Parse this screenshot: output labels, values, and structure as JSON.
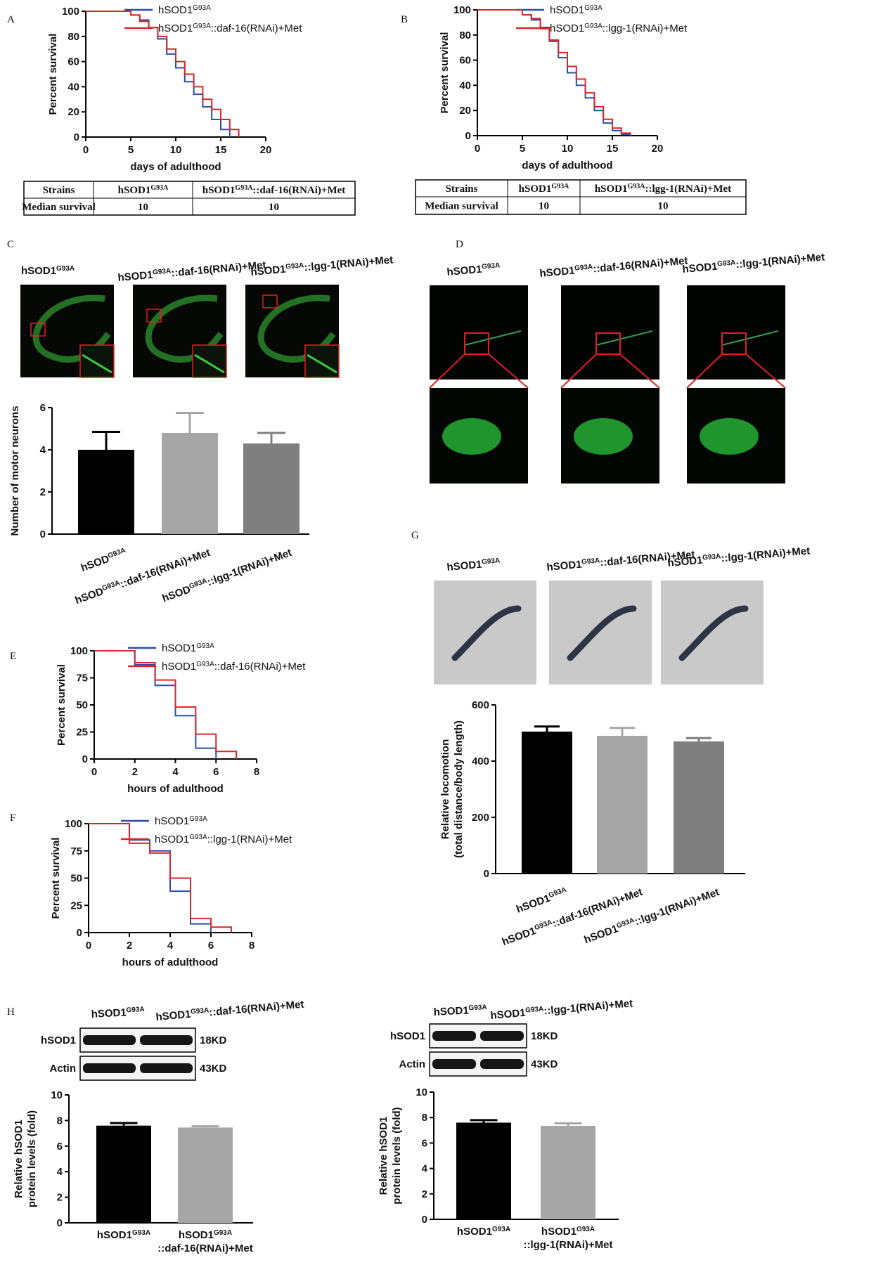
{
  "panel_letters": [
    "A",
    "B",
    "C",
    "D",
    "E",
    "F",
    "G",
    "H"
  ],
  "chart_data": [
    {
      "type": "line",
      "step": true,
      "xlabel": "days of adulthood",
      "ylabel": "Percent survival",
      "x": [
        0,
        4,
        5,
        6,
        7,
        8,
        9,
        10,
        11,
        12,
        13,
        14,
        15,
        16,
        17
      ],
      "xlim": [
        0,
        20
      ],
      "xticks": [
        0,
        5,
        10,
        15,
        20
      ],
      "ylim": [
        0,
        100
      ],
      "yticks": [
        0,
        20,
        40,
        60,
        80,
        100
      ],
      "series": [
        {
          "name": [
            "hSOD1",
            "G93A"
          ],
          "color": "#2a4fa8",
          "values": [
            100,
            100,
            97,
            93,
            87,
            78,
            66,
            55,
            44,
            34,
            24,
            14,
            6,
            0,
            null
          ]
        },
        {
          "name": [
            "hSOD1",
            "G93A",
            "::daf-16(RNAi)+Met"
          ],
          "color": "#d8262b",
          "values": [
            100,
            100,
            97,
            92,
            87,
            80,
            70,
            60,
            50,
            40,
            30,
            22,
            14,
            6,
            0
          ]
        }
      ]
    },
    {
      "type": "line",
      "step": true,
      "xlabel": "days of adulthood",
      "ylabel": "Percent survival",
      "x": [
        0,
        4,
        5,
        6,
        7,
        8,
        9,
        10,
        11,
        12,
        13,
        14,
        15,
        16,
        17
      ],
      "xlim": [
        0,
        20
      ],
      "xticks": [
        0,
        5,
        10,
        15,
        20
      ],
      "ylim": [
        0,
        100
      ],
      "yticks": [
        0,
        20,
        40,
        60,
        80,
        100
      ],
      "series": [
        {
          "name": [
            "hSOD1",
            "G93A"
          ],
          "color": "#2a4fa8",
          "values": [
            100,
            100,
            96,
            92,
            86,
            75,
            62,
            50,
            40,
            30,
            20,
            10,
            4,
            1,
            0
          ]
        },
        {
          "name": [
            "hSOD1",
            "G93A",
            "::lgg-1(RNAi)+Met"
          ],
          "color": "#d8262b",
          "values": [
            100,
            100,
            96,
            93,
            85,
            76,
            66,
            55,
            45,
            34,
            23,
            13,
            6,
            2,
            0
          ]
        }
      ]
    },
    {
      "type": "bar",
      "ylabel": "Number of motor neurons",
      "categories": [
        [
          "hSOD",
          "G93A"
        ],
        [
          "hSOD",
          "G93A",
          "::daf-16(RNAi)+Met"
        ],
        [
          "hSOD",
          "G93A",
          "::lgg-1(RNAi)+Met"
        ]
      ],
      "values": [
        4.0,
        4.8,
        4.3
      ],
      "errors": [
        0.85,
        0.95,
        0.5
      ],
      "colors": [
        "#000000",
        "#a6a6a6",
        "#7f7f7f"
      ],
      "ylim": [
        0,
        6
      ],
      "yticks": [
        0,
        2,
        4,
        6
      ]
    },
    {
      "type": "line",
      "step": true,
      "xlabel": "hours of adulthood",
      "ylabel": "Percent survival",
      "x": [
        0,
        2,
        3,
        4,
        5,
        6,
        7
      ],
      "xlim": [
        0,
        8
      ],
      "xticks": [
        0,
        2,
        4,
        6,
        8
      ],
      "ylim": [
        0,
        100
      ],
      "yticks": [
        0,
        25,
        50,
        75,
        100
      ],
      "series": [
        {
          "name": [
            "hSOD1",
            "G93A"
          ],
          "color": "#2a4fa8",
          "values": [
            100,
            87,
            68,
            40,
            10,
            0,
            null
          ]
        },
        {
          "name": [
            "hSOD1",
            "G93A",
            "::daf-16(RNAi)+Met"
          ],
          "color": "#d8262b",
          "values": [
            100,
            89,
            73,
            48,
            23,
            7,
            0
          ]
        }
      ]
    },
    {
      "type": "line",
      "step": true,
      "xlabel": "hours of adulthood",
      "ylabel": "Percent survival",
      "x": [
        0,
        2,
        3,
        4,
        5,
        6,
        7
      ],
      "xlim": [
        0,
        8
      ],
      "xticks": [
        0,
        2,
        4,
        6,
        8
      ],
      "ylim": [
        0,
        100
      ],
      "yticks": [
        0,
        25,
        50,
        75,
        100
      ],
      "series": [
        {
          "name": [
            "hSOD1",
            "G93A"
          ],
          "color": "#2a4fa8",
          "values": [
            100,
            85,
            75,
            38,
            8,
            0,
            null
          ]
        },
        {
          "name": [
            "hSOD1",
            "G93A",
            "::lgg-1(RNAi)+Met"
          ],
          "color": "#d8262b",
          "values": [
            100,
            82,
            73,
            50,
            13,
            5,
            0
          ]
        }
      ]
    },
    {
      "type": "bar",
      "ylabel": [
        "Relative locomotion",
        "(total distance/body length)"
      ],
      "categories": [
        [
          "hSOD1",
          "G93A"
        ],
        [
          "hSOD1",
          "G93A",
          "::daf-16(RNAi)+Met"
        ],
        [
          "hSOD1",
          "G93A",
          "::lgg-1(RNAi)+Met"
        ]
      ],
      "values": [
        505,
        490,
        470
      ],
      "errors": [
        18,
        28,
        12
      ],
      "colors": [
        "#000000",
        "#a6a6a6",
        "#7f7f7f"
      ],
      "ylim": [
        0,
        600
      ],
      "yticks": [
        0,
        200,
        400,
        600
      ]
    },
    {
      "type": "bar",
      "ylabel": [
        "Relative hSOD1",
        "protein levels (fold)"
      ],
      "categories": [
        [
          "hSOD1",
          "G93A"
        ],
        [
          "hSOD1",
          "G93A",
          "::daf-16(RNAi)+Met"
        ]
      ],
      "values": [
        7.6,
        7.45
      ],
      "errors": [
        0.2,
        0.1
      ],
      "colors": [
        "#000000",
        "#a6a6a6"
      ],
      "ylim": [
        0,
        10
      ],
      "yticks": [
        0,
        2,
        4,
        6,
        8,
        10
      ]
    },
    {
      "type": "bar",
      "ylabel": [
        "Relative hSOD1",
        "protein levels (fold)"
      ],
      "categories": [
        [
          "hSOD1",
          "G93A"
        ],
        [
          "hSOD1",
          "G93A",
          "::lgg-1(RNAi)+Met"
        ]
      ],
      "values": [
        7.6,
        7.35
      ],
      "errors": [
        0.2,
        0.2
      ],
      "colors": [
        "#000000",
        "#a6a6a6"
      ],
      "ylim": [
        0,
        10
      ],
      "yticks": [
        0,
        2,
        4,
        6,
        8,
        10
      ]
    }
  ],
  "tables": [
    {
      "header": [
        "Strains",
        [
          "hSOD1",
          "G93A"
        ],
        [
          "hSOD1",
          "G93A",
          "::daf-16(RNAi)+Met"
        ]
      ],
      "rows": [
        [
          "Median survival",
          10,
          10
        ]
      ]
    },
    {
      "header": [
        "Strains",
        [
          "hSOD1",
          "G93A"
        ],
        [
          "hSOD1",
          "G93A",
          "::lgg-1(RNAi)+Met"
        ]
      ],
      "rows": [
        [
          "Median survival",
          10,
          10
        ]
      ]
    }
  ],
  "micrographs": {
    "C": [
      [
        "hSOD1",
        "G93A"
      ],
      [
        "hSOD1",
        "G93A",
        "::daf-16(RNAi)+Met"
      ],
      [
        "hSOD1",
        "G93A",
        "::lgg-1(RNAi)+Met"
      ]
    ],
    "D": [
      [
        "hSOD1",
        "G93A"
      ],
      [
        "hSOD1",
        "G93A",
        "::daf-16(RNAi)+Met"
      ],
      [
        "hSOD1",
        "G93A",
        "::lgg-1(RNAi)+Met"
      ]
    ],
    "G": [
      [
        "hSOD1",
        "G93A"
      ],
      [
        "hSOD1",
        "G93A",
        "::daf-16(RNAi)+Met"
      ],
      [
        "hSOD1",
        "G93A",
        "::lgg-1(RNAi)+Met"
      ]
    ]
  },
  "blots": [
    {
      "lanes": [
        [
          "hSOD1",
          "G93A"
        ],
        [
          "hSOD1",
          "G93A",
          "::daf-16(RNAi)+Met"
        ]
      ],
      "rows": [
        {
          "protein": "hSOD1",
          "size": "18KD"
        },
        {
          "protein": "Actin",
          "size": "43KD"
        }
      ]
    },
    {
      "lanes": [
        [
          "hSOD1",
          "G93A"
        ],
        [
          "hSOD1",
          "G93A",
          "::lgg-1(RNAi)+Met"
        ]
      ],
      "rows": [
        {
          "protein": "hSOD1",
          "size": "18KD"
        },
        {
          "protein": "Actin",
          "size": "43KD"
        }
      ]
    }
  ]
}
